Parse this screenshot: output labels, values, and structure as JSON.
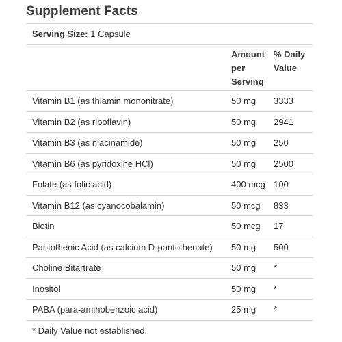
{
  "title": "Supplement Facts",
  "serving": {
    "label": "Serving Size:",
    "value": "1 Capsule"
  },
  "columns": {
    "amount_line1": "Amount",
    "amount_line2": "per",
    "amount_line3": "Serving",
    "daily_value_line1": "% Daily",
    "daily_value_line2": "Value"
  },
  "rows": [
    {
      "name": "Vitamin B1 (as thiamin mononitrate)",
      "amount": "50 mg",
      "dv": "3333"
    },
    {
      "name": "Vitamin B2 (as riboflavin)",
      "amount": "50 mg",
      "dv": "2941"
    },
    {
      "name": "Vitamin B3 (as niacinamide)",
      "amount": "50 mg",
      "dv": "250"
    },
    {
      "name": "Vitamin B6 (as pyridoxine HCl)",
      "amount": "50 mg",
      "dv": "2500"
    },
    {
      "name": "Folate (as folic acid)",
      "amount": "400 mcg",
      "dv": "100"
    },
    {
      "name": "Vitamin B12 (as cyanocobalamin)",
      "amount": "50 mcg",
      "dv": "833"
    },
    {
      "name": "Biotin",
      "amount": "50 mcg",
      "dv": "17"
    },
    {
      "name": "Pantothenic Acid (as calcium D-pantothenate)",
      "amount": "50 mg",
      "dv": "500"
    },
    {
      "name": "Choline Bitartrate",
      "amount": "50 mg",
      "dv": "*"
    },
    {
      "name": "Inositol",
      "amount": "50 mg",
      "dv": "*"
    },
    {
      "name": "PABA (para-aminobenzoic acid)",
      "amount": "25 mg",
      "dv": "*"
    }
  ],
  "footnote": "* Daily Value not established."
}
